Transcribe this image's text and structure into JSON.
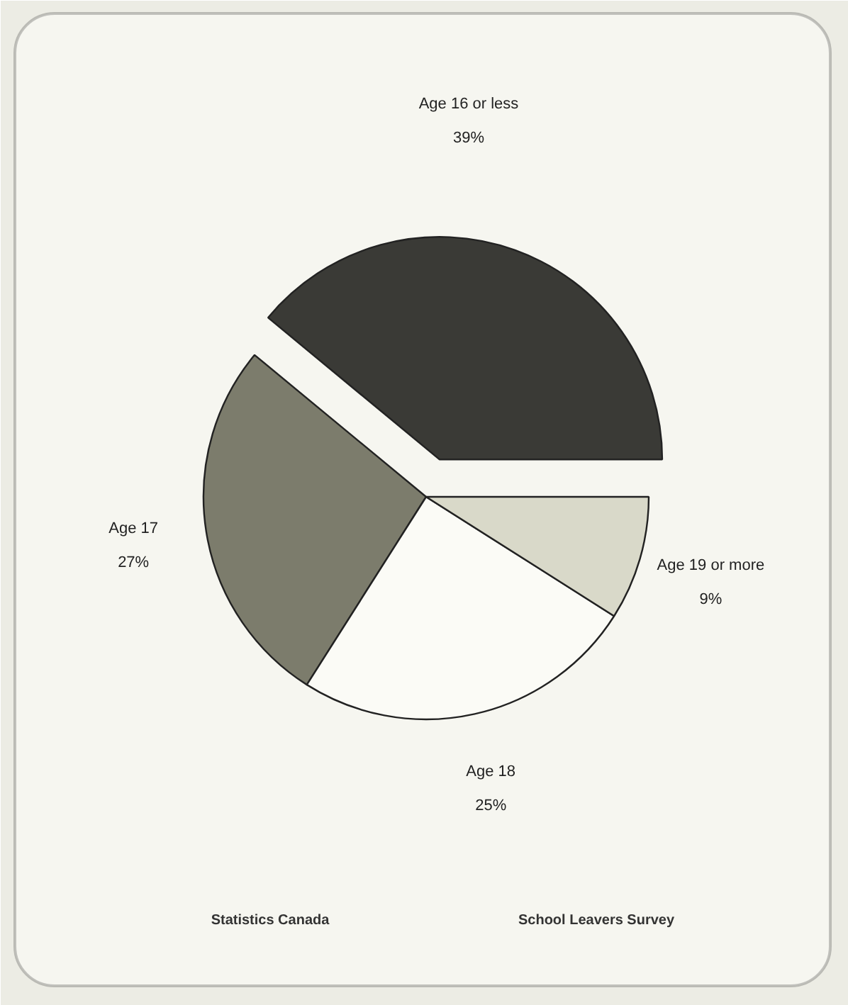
{
  "chart_data": {
    "type": "pie",
    "categories": [
      "Age 16 or less",
      "Age 17",
      "Age 18",
      "Age 19 or more"
    ],
    "values": [
      39,
      27,
      25,
      9
    ],
    "colors": [
      "#3a3a36",
      "#7c7c6c",
      "#fbfbf6",
      "#d9d9c9"
    ],
    "value_labels": [
      "39%",
      "27%",
      "25%",
      "9%"
    ],
    "annotations": [
      "Statistics Canada",
      "School Leavers Survey"
    ]
  }
}
